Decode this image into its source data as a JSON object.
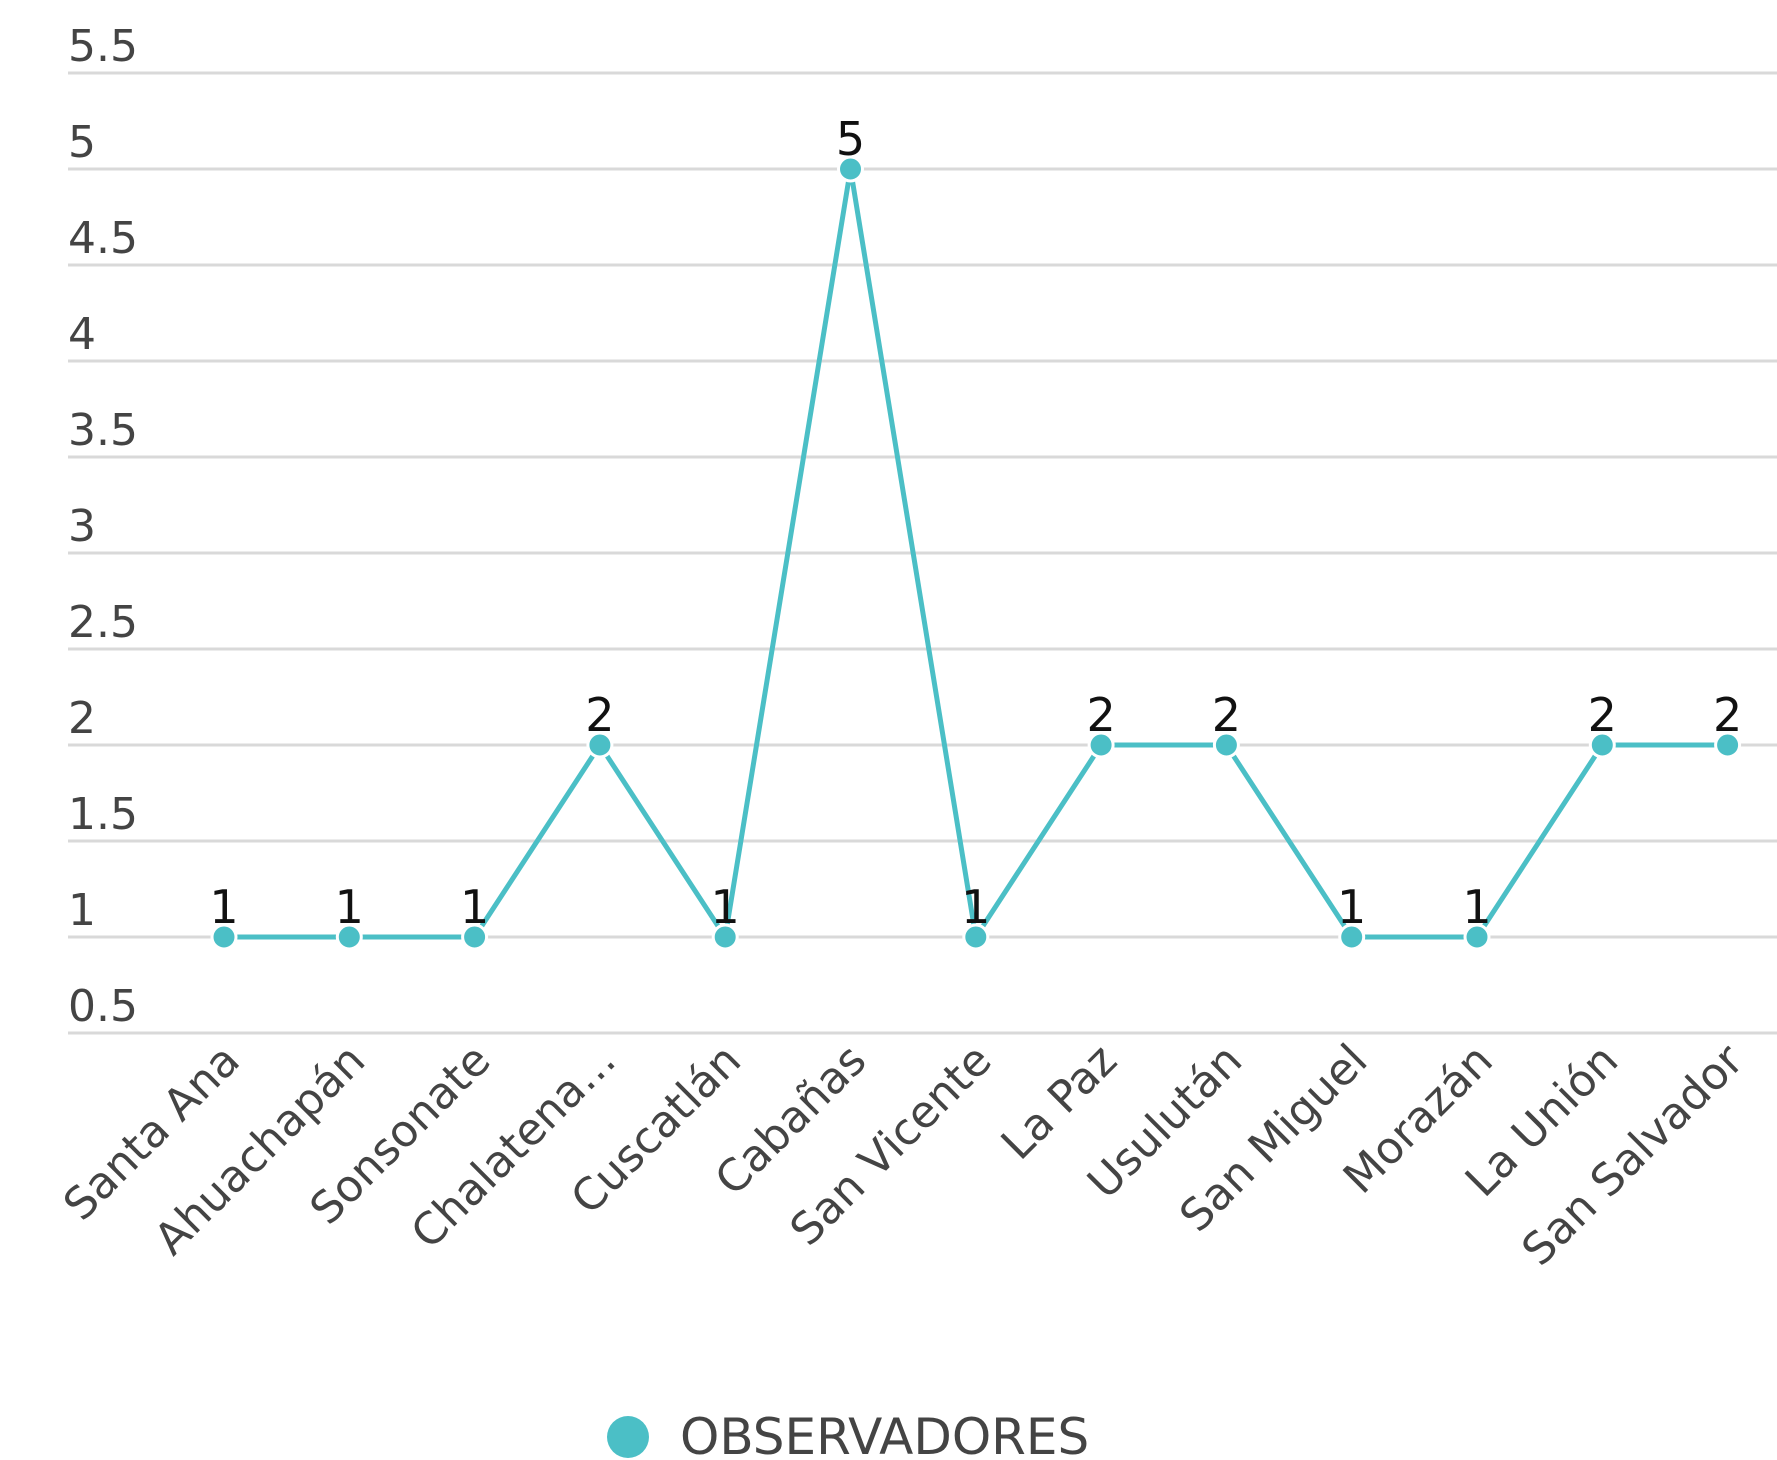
{
  "chart_data": {
    "type": "line",
    "categories": [
      "Santa Ana",
      "Ahuachapán",
      "Sonsonate",
      "Chalatena...",
      "Cuscatlán",
      "Cabañas",
      "San Vicente",
      "La Paz",
      "Usulután",
      "San Miguel",
      "Morazán",
      "La Unión",
      "San Salvador"
    ],
    "series": [
      {
        "name": "OBSERVADORES",
        "values": [
          1,
          1,
          1,
          2,
          1,
          5,
          1,
          2,
          2,
          1,
          1,
          2,
          2
        ],
        "color": "#4bbfc6"
      }
    ],
    "yticks": [
      "0.5",
      "1",
      "1.5",
      "2",
      "2.5",
      "3",
      "3.5",
      "4",
      "4.5",
      "5",
      "5.5"
    ],
    "ylim": [
      0.5,
      5.5
    ],
    "grid": true,
    "data_labels": true,
    "legend": "bottom-center",
    "grid_color": "#d9d9d9"
  }
}
